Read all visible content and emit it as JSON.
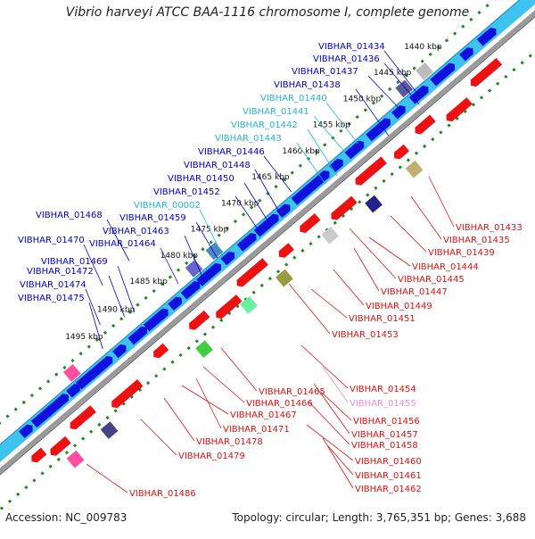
{
  "header": {
    "title": "Vibrio harveyi ATCC BAA-1116 chromosome I, complete genome"
  },
  "footer": {
    "accession": "Accession: NC_009783",
    "summary": "Topology: circular; Length: 3,765,351 bp; Genes: 3,688"
  },
  "colors": {
    "forward_strand": "#3ec3f0",
    "backbone": "#9a9a9a",
    "tick": "#1e8a1e",
    "blue_label": "#0000cc",
    "cyan_label": "#25b5d5",
    "red_label": "#dd1111",
    "pink_label": "#e090d0",
    "gene_red": "#ee1111",
    "gene_blue": "#1111dd"
  },
  "ruler": {
    "ticks": [
      "1440 kbp",
      "1445 kbp",
      "1450 kbp",
      "1455 kbp",
      "1460 kbp",
      "1465 kbp",
      "1470 kbp",
      "1475 kbp",
      "1480 kbp",
      "1485 kbp",
      "1490 kbp",
      "1495 kbp"
    ]
  },
  "labels_top": [
    {
      "name": "VIBHAR_01434",
      "color": "blue"
    },
    {
      "name": "VIBHAR_01436",
      "color": "blue"
    },
    {
      "name": "VIBHAR_01437",
      "color": "blue"
    },
    {
      "name": "VIBHAR_01438",
      "color": "blue"
    },
    {
      "name": "VIBHAR_01440",
      "color": "cyan"
    },
    {
      "name": "VIBHAR_01441",
      "color": "cyan"
    },
    {
      "name": "VIBHAR_01442",
      "color": "cyan"
    },
    {
      "name": "VIBHAR_01443",
      "color": "cyan"
    },
    {
      "name": "VIBHAR_01446",
      "color": "blue"
    },
    {
      "name": "VIBHAR_01448",
      "color": "blue"
    },
    {
      "name": "VIBHAR_01450",
      "color": "blue"
    },
    {
      "name": "VIBHAR_01452",
      "color": "blue"
    },
    {
      "name": "VIBHAR_00002",
      "color": "cyan"
    },
    {
      "name": "VIBHAR_01468",
      "color": "blue"
    },
    {
      "name": "VIBHAR_01459",
      "color": "blue"
    },
    {
      "name": "VIBHAR_01463",
      "color": "blue"
    },
    {
      "name": "VIBHAR_01470",
      "color": "blue"
    },
    {
      "name": "VIBHAR_01464",
      "color": "blue"
    },
    {
      "name": "VIBHAR_01469",
      "color": "blue"
    },
    {
      "name": "VIBHAR_01472",
      "color": "blue"
    },
    {
      "name": "VIBHAR_01474",
      "color": "blue"
    },
    {
      "name": "VIBHAR_01475",
      "color": "blue"
    }
  ],
  "labels_bottom": [
    {
      "name": "VIBHAR_01433",
      "color": "red"
    },
    {
      "name": "VIBHAR_01435",
      "color": "red"
    },
    {
      "name": "VIBHAR_01439",
      "color": "red"
    },
    {
      "name": "VIBHAR_01444",
      "color": "red"
    },
    {
      "name": "VIBHAR_01445",
      "color": "red"
    },
    {
      "name": "VIBHAR_01447",
      "color": "red"
    },
    {
      "name": "VIBHAR_01449",
      "color": "red"
    },
    {
      "name": "VIBHAR_01451",
      "color": "red"
    },
    {
      "name": "VIBHAR_01453",
      "color": "red"
    },
    {
      "name": "VIBHAR_01454",
      "color": "red"
    },
    {
      "name": "VIBHAR_01455",
      "color": "pink"
    },
    {
      "name": "VIBHAR_01456",
      "color": "red"
    },
    {
      "name": "VIBHAR_01457",
      "color": "red"
    },
    {
      "name": "VIBHAR_01458",
      "color": "red"
    },
    {
      "name": "VIBHAR_01460",
      "color": "red"
    },
    {
      "name": "VIBHAR_01461",
      "color": "red"
    },
    {
      "name": "VIBHAR_01462",
      "color": "red"
    },
    {
      "name": "VIBHAR_01465",
      "color": "red"
    },
    {
      "name": "VIBHAR_01466",
      "color": "red"
    },
    {
      "name": "VIBHAR_01467",
      "color": "red"
    },
    {
      "name": "VIBHAR_01471",
      "color": "red"
    },
    {
      "name": "VIBHAR_01478",
      "color": "red"
    },
    {
      "name": "VIBHAR_01479",
      "color": "red"
    },
    {
      "name": "VIBHAR_01486",
      "color": "red"
    }
  ]
}
